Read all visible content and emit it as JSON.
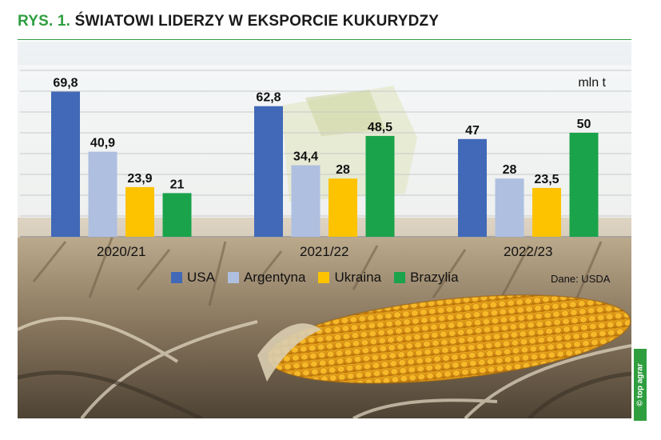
{
  "figure": {
    "number": "RYS. 1.",
    "title": "ŚWIATOWI LIDERZY W EKSPORCIE KUKURYDZY"
  },
  "chart_data": {
    "type": "bar",
    "title": "ŚWIATOWI LIDERZY W EKSPORCIE KUKURYDZY",
    "unit": "mln t",
    "source": "Dane: USDA",
    "categories": [
      "2020/21",
      "2021/22",
      "2022/23"
    ],
    "series": [
      {
        "name": "USA",
        "color": "#4169b8",
        "values": [
          69.8,
          62.8,
          47
        ],
        "labels": [
          "69,8",
          "62,8",
          "47"
        ]
      },
      {
        "name": "Argentyna",
        "color": "#aebfe0",
        "values": [
          40.9,
          34.4,
          28
        ],
        "labels": [
          "40,9",
          "34,4",
          "28"
        ]
      },
      {
        "name": "Ukraina",
        "color": "#fdc300",
        "values": [
          23.9,
          28,
          23.5
        ],
        "labels": [
          "23,9",
          "28",
          "23,5"
        ]
      },
      {
        "name": "Brazylia",
        "color": "#1aa34a",
        "values": [
          21,
          48.5,
          50
        ],
        "labels": [
          "21",
          "48,5",
          "50"
        ]
      }
    ],
    "ylim": [
      0,
      80
    ],
    "grid": true,
    "legend_position": "bottom"
  },
  "credit": "© top agrar"
}
